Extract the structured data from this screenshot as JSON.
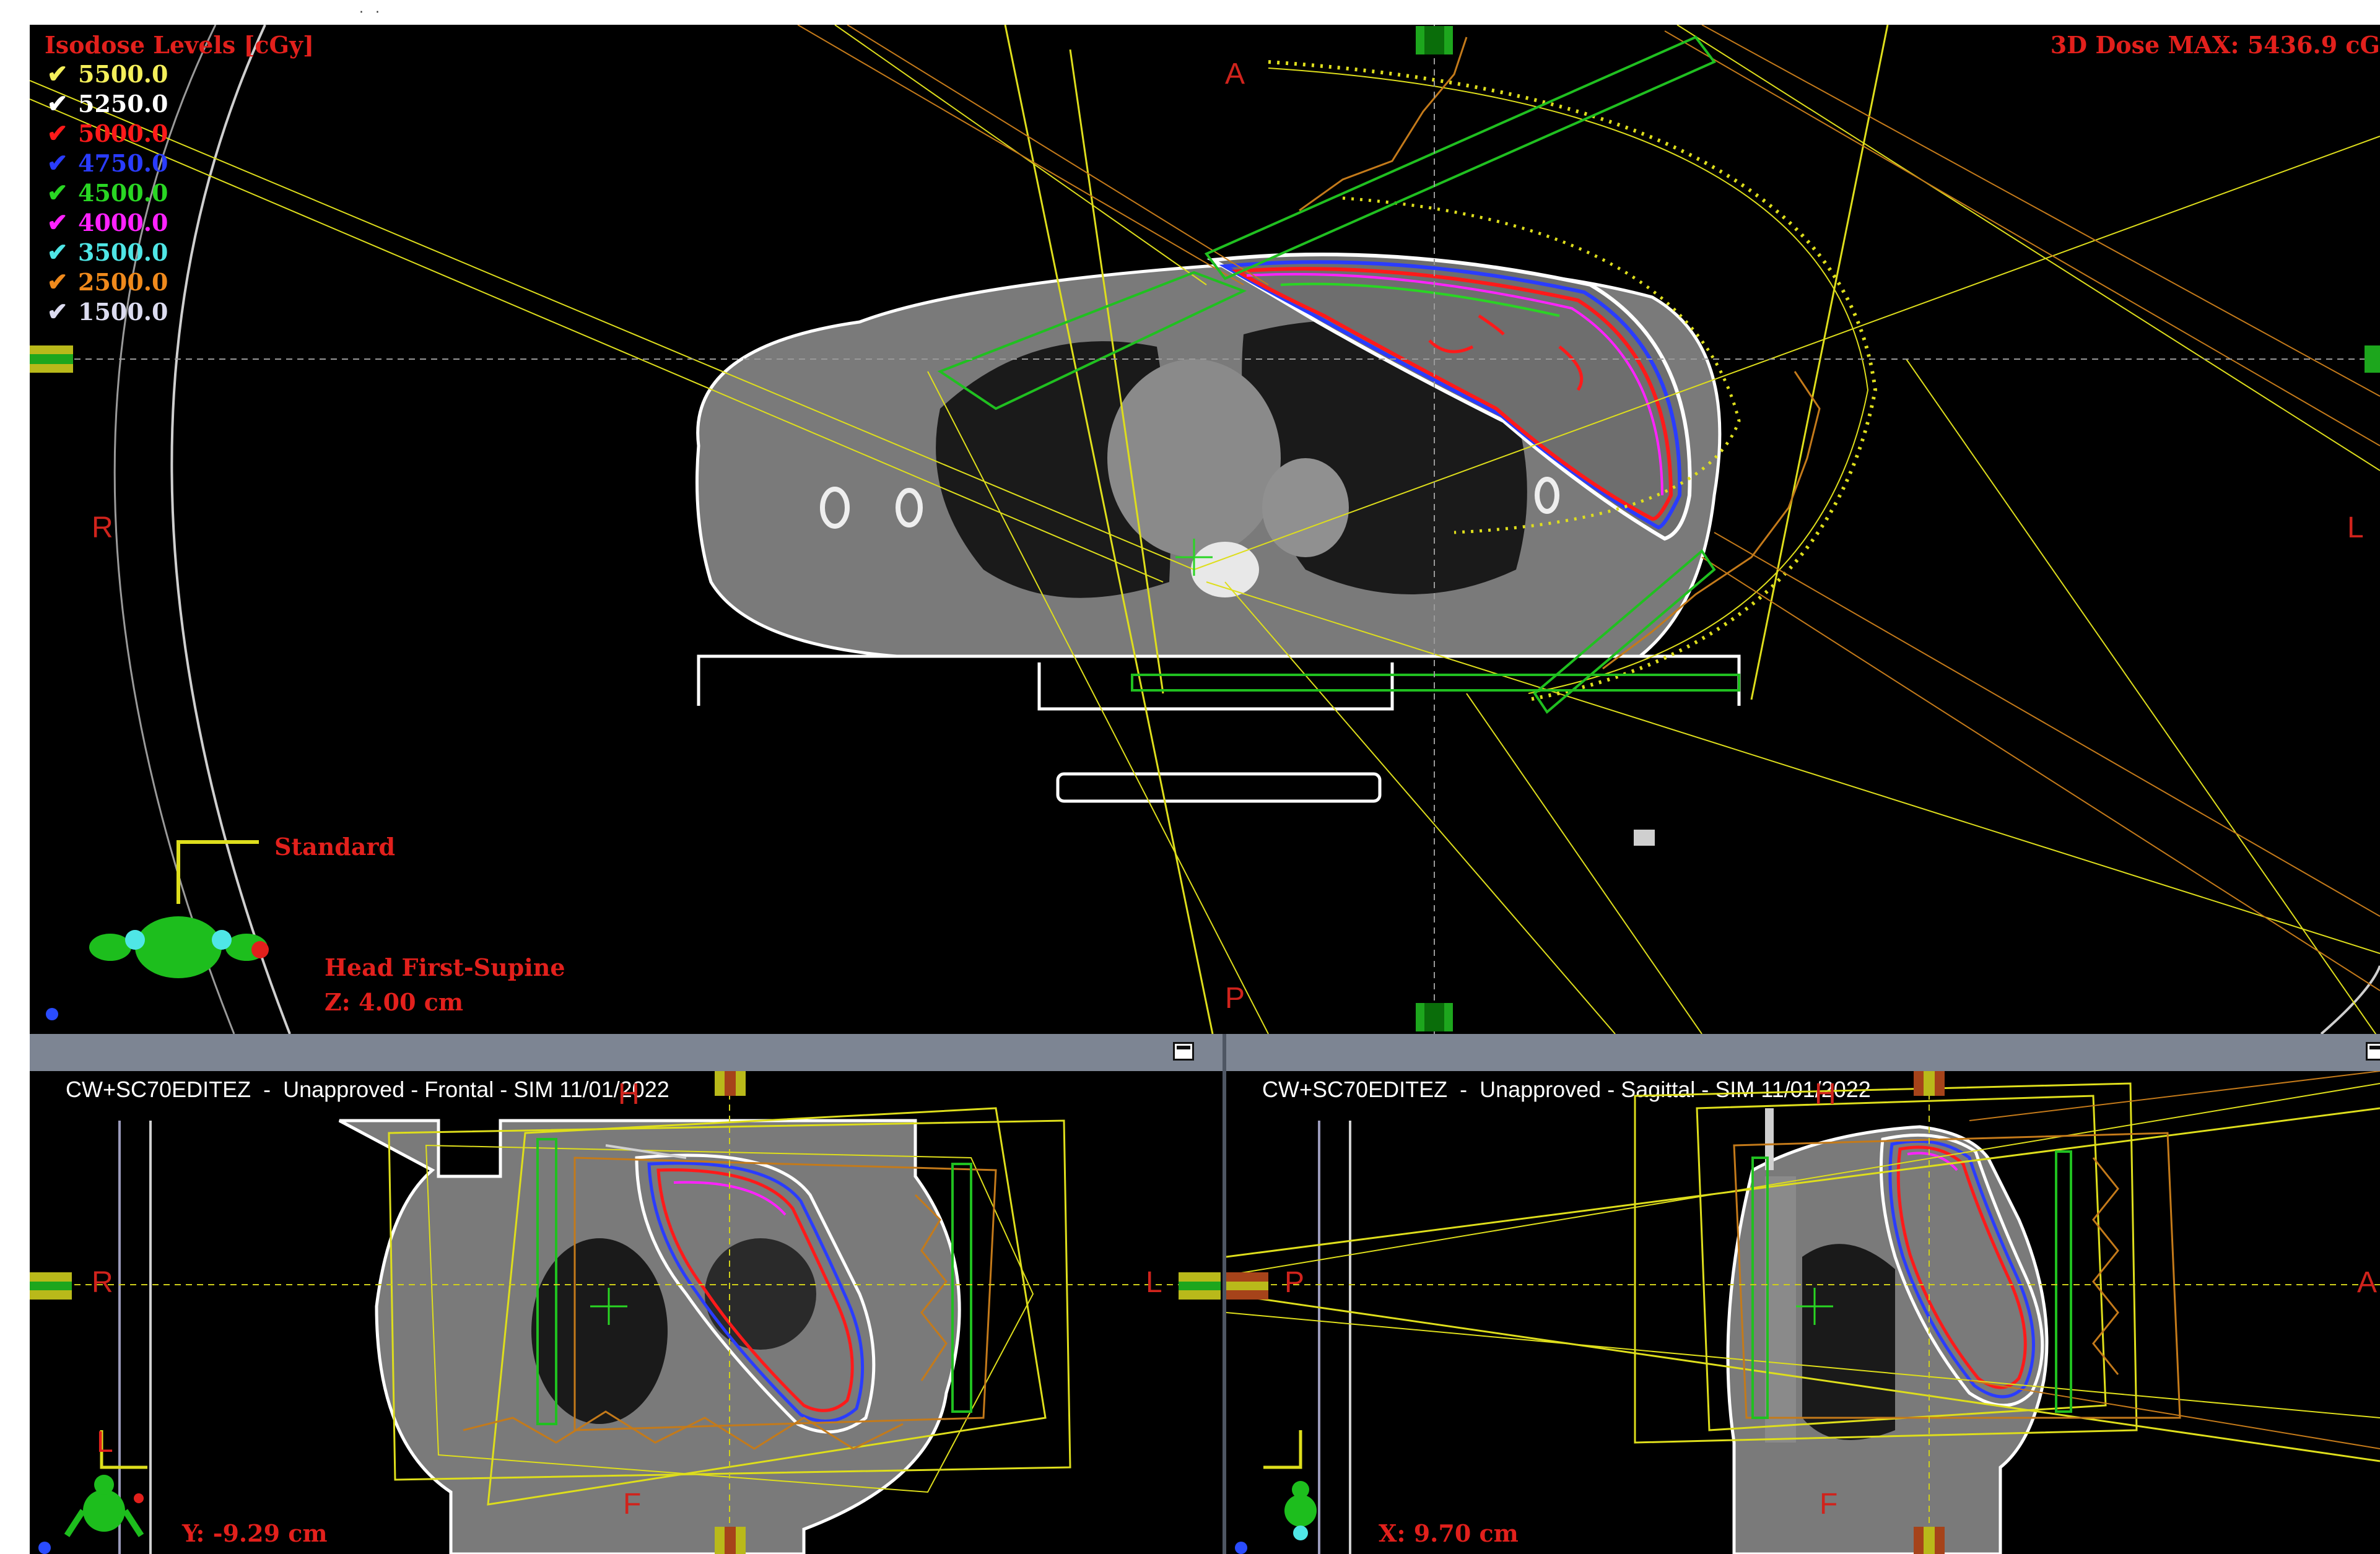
{
  "isodose": {
    "title": "Isodose Levels [cGy]",
    "levels": [
      {
        "value": "5500.0",
        "color": "#f4ef5a"
      },
      {
        "value": "5250.0",
        "color": "#ffffff"
      },
      {
        "value": "5000.0",
        "color": "#ff1a1a"
      },
      {
        "value": "4750.0",
        "color": "#2a3cff"
      },
      {
        "value": "4500.0",
        "color": "#29d623"
      },
      {
        "value": "4000.0",
        "color": "#ff22ff"
      },
      {
        "value": "3500.0",
        "color": "#4fe6e6"
      },
      {
        "value": "2500.0",
        "color": "#f08a1c"
      },
      {
        "value": "1500.0",
        "color": "#dcdcf0"
      }
    ]
  },
  "axial": {
    "dose_max": "3D Dose MAX: 5436.9 cG",
    "orient_anterior": "A",
    "orient_posterior": "P",
    "orient_right": "R",
    "orient_left": "L",
    "beam_label": "Standard",
    "patient_position": "Head First-Supine",
    "slice_position": "Z: 4.00 cm"
  },
  "frontal": {
    "title": "CW+SC70EDITEZ  -  Unapproved - Frontal - SIM 11/01/2022",
    "orient_head": "H",
    "orient_foot": "F",
    "orient_right": "R",
    "orient_left": "L",
    "slice_position": "Y: -9.29 cm"
  },
  "sagittal": {
    "title": "CW+SC70EDITEZ  -  Unapproved - Sagittal - SIM 11/01/2022",
    "orient_head": "H",
    "orient_foot": "F",
    "orient_posterior": "P",
    "orient_anterior": "A",
    "slice_position": "X: 9.70 cm"
  },
  "colors": {
    "label_red": "#e2201c",
    "beam_yellow": "#dede1c",
    "beam_orange": "#c47a1a",
    "ptv_green": "#20c020",
    "titlebar": "#7d8593"
  }
}
